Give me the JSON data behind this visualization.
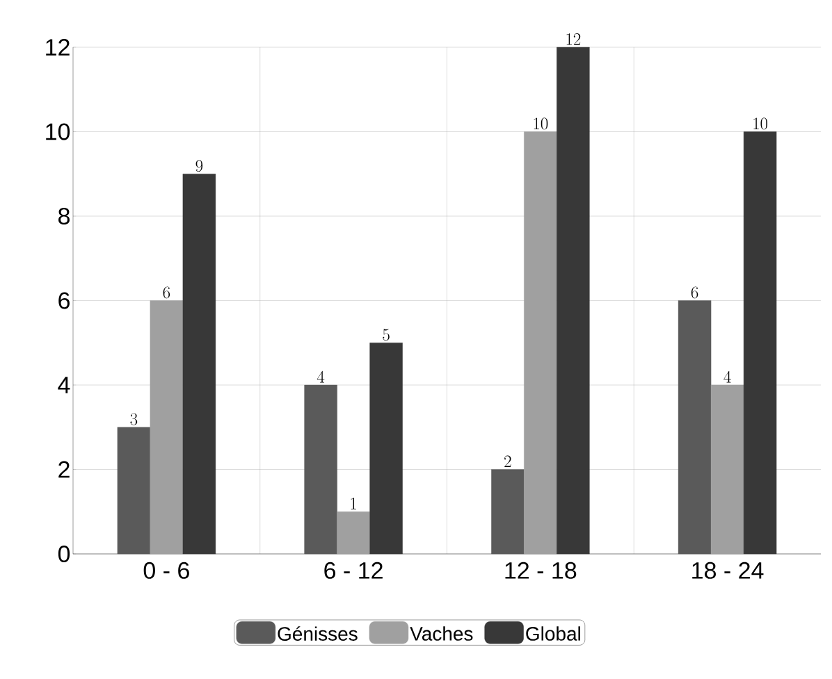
{
  "chart_data": {
    "type": "bar",
    "categories": [
      "0 - 6",
      "6 - 12",
      "12 - 18",
      "18 - 24"
    ],
    "series": [
      {
        "name": "Génisses",
        "color": "#5a5a5a",
        "values": [
          3,
          4,
          2,
          6
        ]
      },
      {
        "name": "Vaches",
        "color": "#a0a0a0",
        "values": [
          6,
          1,
          10,
          4
        ]
      },
      {
        "name": "Global",
        "color": "#383838",
        "values": [
          9,
          5,
          12,
          10
        ]
      }
    ],
    "ylim": [
      0,
      12
    ],
    "yticks": [
      0,
      2,
      4,
      6,
      8,
      10,
      12
    ],
    "grid": true,
    "data_labels": true,
    "legend": "bottom"
  }
}
